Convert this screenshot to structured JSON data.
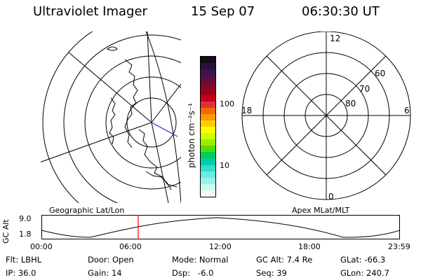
{
  "header": {
    "instrument": "Ultraviolet Imager",
    "date": "15 Sep 07",
    "time": "06:30:30 UT"
  },
  "colorbar": {
    "unit_label": "photon cm⁻²s⁻¹",
    "ticks": [
      "100",
      "10"
    ],
    "scale": "log",
    "colors_top_to_bottom": [
      "#1a0a1e",
      "#2a0f3a",
      "#3a1550",
      "#5a0f40",
      "#7a0a2a",
      "#a00018",
      "#c8001a",
      "#e0303a",
      "#f06a00",
      "#ff9900",
      "#ffcc00",
      "#ffff00",
      "#ccff00",
      "#99ee00",
      "#55dd00",
      "#00cc66",
      "#00ccaa",
      "#33ddcc",
      "#66eedd",
      "#99f2ea",
      "#ccf7f2",
      "#eefcfb"
    ]
  },
  "right_plot": {
    "label": "Apex MLat/MLT",
    "mlt_labels": {
      "top": "12",
      "left": "18",
      "right": "6",
      "bottom": "0"
    },
    "lat_labels": [
      "60",
      "70",
      "80"
    ]
  },
  "left_plot": {
    "label": "Geographic Lat/Lon"
  },
  "timeline": {
    "ylabel": "GC Alt",
    "yticks": [
      "9.0",
      "1.8"
    ],
    "xticks": [
      "00:00",
      "06:00",
      "12:00",
      "18:00",
      "23:59"
    ],
    "marker_time": "06:30",
    "marker_color": "#ff0000"
  },
  "info": {
    "row1": {
      "flt": "Flt: LBHL",
      "door": "Door: Open",
      "mode": "Mode: Normal",
      "gcalt": "GC Alt: 7.4 Re",
      "glat": "GLat: -66.3"
    },
    "row2": {
      "ip": "IP: 36.0",
      "gain": "Gain: 14",
      "dsp": "Dsp:   -6.0",
      "seq": "Seq: 39",
      "glon": "GLon: 240.7"
    }
  }
}
